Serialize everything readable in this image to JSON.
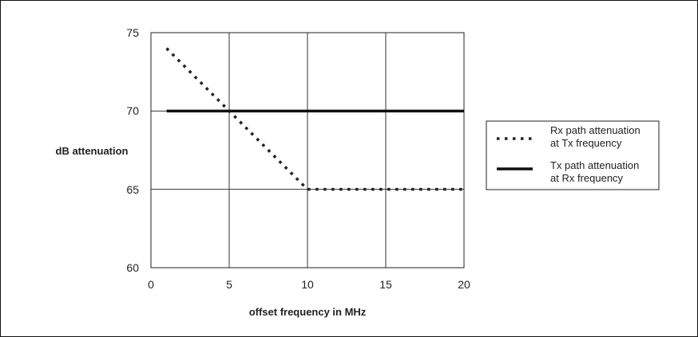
{
  "chart_data": {
    "type": "line",
    "xlabel": "offset frequency in MHz",
    "ylabel": "dB attenuation",
    "xlim": [
      0,
      20
    ],
    "ylim": [
      60,
      75
    ],
    "x_ticks": [
      "0",
      "5",
      "10",
      "15",
      "20"
    ],
    "y_ticks": [
      "60",
      "65",
      "70",
      "75"
    ],
    "grid": true,
    "legend_position": "right",
    "series": [
      {
        "name_lines": [
          "Rx path attenuation",
          "at Tx frequency"
        ],
        "style": "dotted",
        "color": "#222222",
        "x": [
          1,
          10,
          20
        ],
        "y": [
          74,
          65,
          65
        ]
      },
      {
        "name_lines": [
          "Tx path attenuation",
          "at Rx frequency"
        ],
        "style": "solid",
        "color": "#111111",
        "x": [
          1,
          20
        ],
        "y": [
          70,
          70
        ]
      }
    ]
  }
}
